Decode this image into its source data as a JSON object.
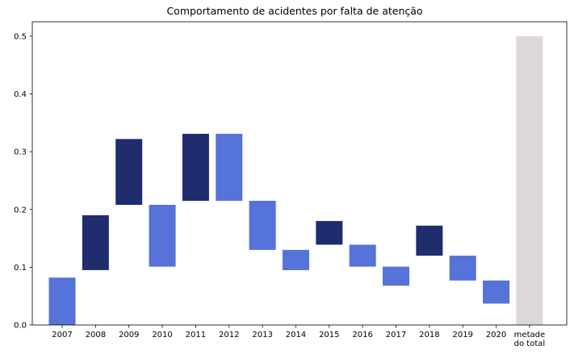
{
  "chart_data": {
    "type": "bar",
    "subtype": "floating-waterfall",
    "title": "Comportamento de acidentes por falta de atenção",
    "xlabel": "",
    "ylabel": "",
    "ylim": [
      0,
      0.525
    ],
    "yticks": [
      "0.0",
      "0.1",
      "0.2",
      "0.3",
      "0.4",
      "0.5"
    ],
    "grid": false,
    "legend": "none",
    "categories": [
      "2007",
      "2008",
      "2009",
      "2010",
      "2011",
      "2012",
      "2013",
      "2014",
      "2015",
      "2016",
      "2017",
      "2018",
      "2019",
      "2020",
      "metade\ndo total"
    ],
    "bars": [
      {
        "category": "2007",
        "bottom": 0.0,
        "top": 0.082,
        "direction": "decrease"
      },
      {
        "category": "2008",
        "bottom": 0.095,
        "top": 0.19,
        "direction": "increase"
      },
      {
        "category": "2009",
        "bottom": 0.208,
        "top": 0.322,
        "direction": "increase"
      },
      {
        "category": "2010",
        "bottom": 0.101,
        "top": 0.208,
        "direction": "decrease"
      },
      {
        "category": "2011",
        "bottom": 0.215,
        "top": 0.331,
        "direction": "increase"
      },
      {
        "category": "2012",
        "bottom": 0.215,
        "top": 0.331,
        "direction": "decrease"
      },
      {
        "category": "2013",
        "bottom": 0.13,
        "top": 0.215,
        "direction": "decrease"
      },
      {
        "category": "2014",
        "bottom": 0.095,
        "top": 0.13,
        "direction": "decrease"
      },
      {
        "category": "2015",
        "bottom": 0.139,
        "top": 0.18,
        "direction": "increase"
      },
      {
        "category": "2016",
        "bottom": 0.101,
        "top": 0.139,
        "direction": "decrease"
      },
      {
        "category": "2017",
        "bottom": 0.068,
        "top": 0.101,
        "direction": "decrease"
      },
      {
        "category": "2018",
        "bottom": 0.12,
        "top": 0.172,
        "direction": "increase"
      },
      {
        "category": "2019",
        "bottom": 0.077,
        "top": 0.12,
        "direction": "decrease"
      },
      {
        "category": "2020",
        "bottom": 0.037,
        "top": 0.077,
        "direction": "decrease"
      },
      {
        "category": "metade\ndo total",
        "bottom": 0.0,
        "top": 0.5,
        "direction": "reference"
      }
    ],
    "colors": {
      "increase": "#1f2d6e",
      "decrease": "#5573d8",
      "reference": "#ddd7d7"
    }
  }
}
